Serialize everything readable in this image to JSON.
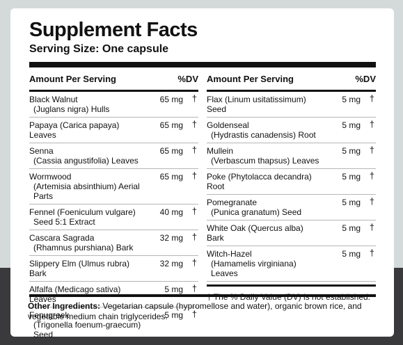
{
  "title": "Supplement Facts",
  "serving_size": "Serving Size: One capsule",
  "columns_header": {
    "amount": "Amount Per Serving",
    "dv": "%DV"
  },
  "left_rows": [
    {
      "name": "Black Walnut",
      "name2": "(Juglans nigra) Hulls",
      "amount": "65 mg",
      "dv": "†"
    },
    {
      "name": "Papaya (Carica papaya) Leaves",
      "name2": "",
      "amount": "65 mg",
      "dv": "†"
    },
    {
      "name": "Senna",
      "name2": "(Cassia angustifolia) Leaves",
      "amount": "65 mg",
      "dv": "†"
    },
    {
      "name": "Wormwood",
      "name2": "(Artemisia absinthium) Aerial Parts",
      "amount": "65 mg",
      "dv": "†"
    },
    {
      "name": "Fennel (Foeniculum vulgare)",
      "name2": "Seed 5:1 Extract",
      "amount": "40 mg",
      "dv": "†"
    },
    {
      "name": "Cascara Sagrada",
      "name2": "(Rhamnus purshiana) Bark",
      "amount": "32 mg",
      "dv": "†"
    },
    {
      "name": "Slippery Elm (Ulmus rubra) Bark",
      "name2": "",
      "amount": "32 mg",
      "dv": "†"
    },
    {
      "name": "Alfalfa (Medicago sativa) Leaves",
      "name2": "",
      "amount": "5 mg",
      "dv": "†"
    },
    {
      "name": "Fenugreek",
      "name2": "(Trigonella foenum-graecum) Seed",
      "amount": "5 mg",
      "dv": "†"
    }
  ],
  "right_rows": [
    {
      "name": "Flax (Linum usitatissimum) Seed",
      "name2": "",
      "amount": "5 mg",
      "dv": "†"
    },
    {
      "name": "Goldenseal",
      "name2": "(Hydrastis canadensis) Root",
      "amount": "5 mg",
      "dv": "†"
    },
    {
      "name": "Mullein",
      "name2": "(Verbascum thapsus) Leaves",
      "amount": "5 mg",
      "dv": "†"
    },
    {
      "name": "Poke (Phytolacca decandra) Root",
      "name2": "",
      "amount": "5 mg",
      "dv": "†"
    },
    {
      "name": "Pomegranate",
      "name2": "(Punica granatum) Seed",
      "amount": "5 mg",
      "dv": "†"
    },
    {
      "name": "White Oak (Quercus alba) Bark",
      "name2": "",
      "amount": "5 mg",
      "dv": "†"
    },
    {
      "name": "Witch-Hazel",
      "name2": "(Hamamelis virginiana) Leaves",
      "amount": "5 mg",
      "dv": "†"
    }
  ],
  "footnote": "† The % Daily Value (DV) is not established.",
  "other_ingredients": {
    "label": "Other Ingredients:",
    "text": "Vegetarian capsule (hypromellose and water), organic brown rice, and vegetable medium chain triglycerides."
  }
}
